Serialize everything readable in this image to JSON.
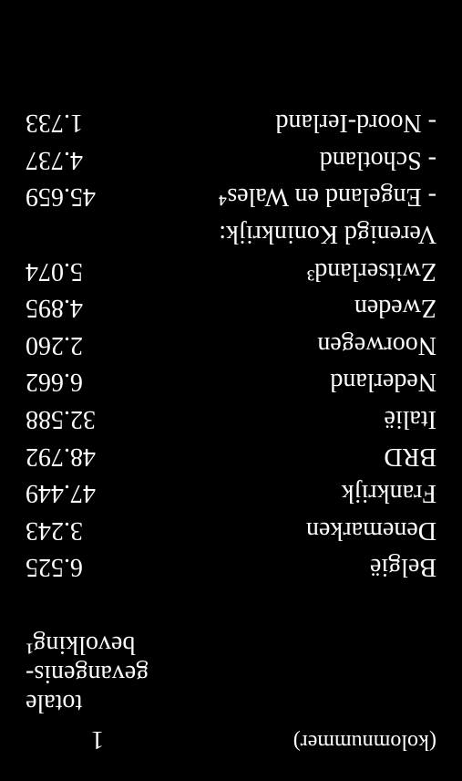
{
  "colors": {
    "background": "#000000",
    "text": "#ffffff"
  },
  "typography": {
    "family": "Georgia, Times New Roman, serif",
    "body_size_pt": 21,
    "header_small_size_pt": 18
  },
  "header": {
    "column_label": "(kolomnummer)",
    "column_number": "1",
    "heading_line1": "totale",
    "heading_line2": "gevangenis-",
    "heading_line3": "bevolking¹"
  },
  "rows": [
    {
      "label": "België",
      "value": "6.525",
      "indent": false
    },
    {
      "label": "Denemarken",
      "value": "3.243",
      "indent": false
    },
    {
      "label": "Frankrijk",
      "value": "47.449",
      "indent": false
    },
    {
      "label": "BRD",
      "value": "48.792",
      "indent": false
    },
    {
      "label": "Italië",
      "value": "32.588",
      "indent": false
    },
    {
      "label": "Nederland",
      "value": "6.662",
      "indent": false
    },
    {
      "label": "Noorwegen",
      "value": "2.260",
      "indent": false
    },
    {
      "label": "Zweden",
      "value": "4.895",
      "indent": false
    },
    {
      "label": "Zwitserland³",
      "value": "5.074",
      "indent": false
    },
    {
      "label": "Verenigd Koninkrijk:",
      "value": "",
      "indent": false
    },
    {
      "label": "- Engeland en Wales⁴",
      "value": "45.659",
      "indent": true
    },
    {
      "label": "- Schotland",
      "value": "4.737",
      "indent": true
    },
    {
      "label": "- Noord-Ierland",
      "value": "1.733",
      "indent": true
    }
  ]
}
